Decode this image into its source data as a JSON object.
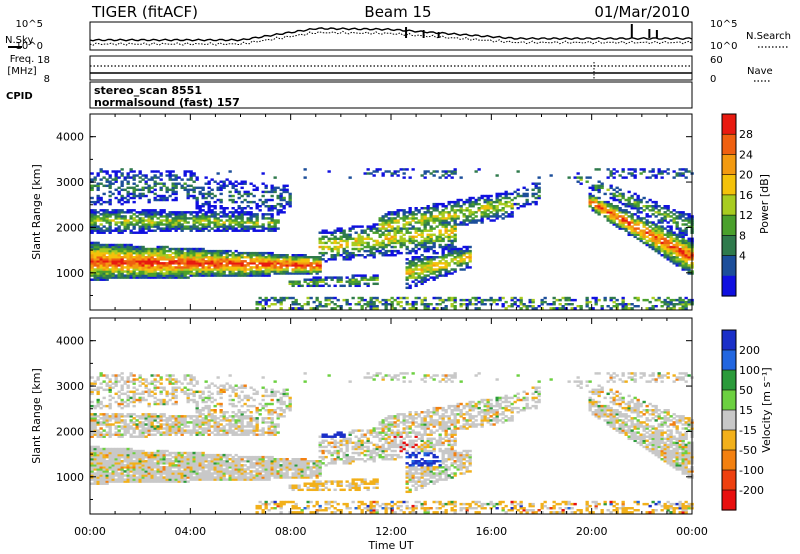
{
  "header": {
    "radar": "TIGER (fitACF)",
    "beam": "Beam 15",
    "date": "01/Mar/2010"
  },
  "top_panels": {
    "nsky_label": "N.Sky",
    "nsearch_label": "N.Search",
    "y_top_label": "10^5",
    "y_bottom_label": "10^0",
    "freq_label_1": "Freq.",
    "freq_label_2": "[MHz]",
    "freq_ticks": [
      "18",
      "8"
    ],
    "nave_ticks": [
      "60",
      "0"
    ],
    "nave_label": "Nave",
    "cpid_label": "CPID",
    "cpid_line_1": "stereo_scan 8551",
    "cpid_line_2": "normalsound (fast) 157"
  },
  "chart_data": [
    {
      "type": "heatmap",
      "parameter": "Power",
      "ylabel": "Slant Range [km]",
      "ylim": [
        180,
        4500
      ],
      "y_ticks": [
        "1000",
        "2000",
        "3000",
        "4000"
      ],
      "colorbar_label": "Power [dB]",
      "colorbar_ticks": [
        "4",
        "8",
        "12",
        "16",
        "20",
        "24",
        "28"
      ],
      "colorbar_colors": [
        "#1010e0",
        "#1c4e9a",
        "#2f7a4c",
        "#4aa02c",
        "#a8cc20",
        "#f4c20a",
        "#f39a10",
        "#ef6010",
        "#e81a10"
      ]
    },
    {
      "type": "heatmap",
      "parameter": "Velocity",
      "ylabel": "Slant Range [km]",
      "ylim": [
        180,
        4500
      ],
      "y_ticks": [
        "1000",
        "2000",
        "3000",
        "4000"
      ],
      "xlabel": "Time UT",
      "x_ticks": [
        "00:00",
        "04:00",
        "08:00",
        "12:00",
        "16:00",
        "20:00",
        "00:00"
      ],
      "colorbar_label": "Velocity [m s⁻¹]",
      "colorbar_ticks": [
        "200",
        "100",
        "50",
        "15",
        "-15",
        "-50",
        "-100",
        "-200"
      ],
      "colorbar_colors": [
        "#1a2fc8",
        "#2166e0",
        "#2a9a3a",
        "#6cd040",
        "#c8c8c8",
        "#f2b01a",
        "#f38010",
        "#ee4010",
        "#e80e0e"
      ]
    }
  ]
}
